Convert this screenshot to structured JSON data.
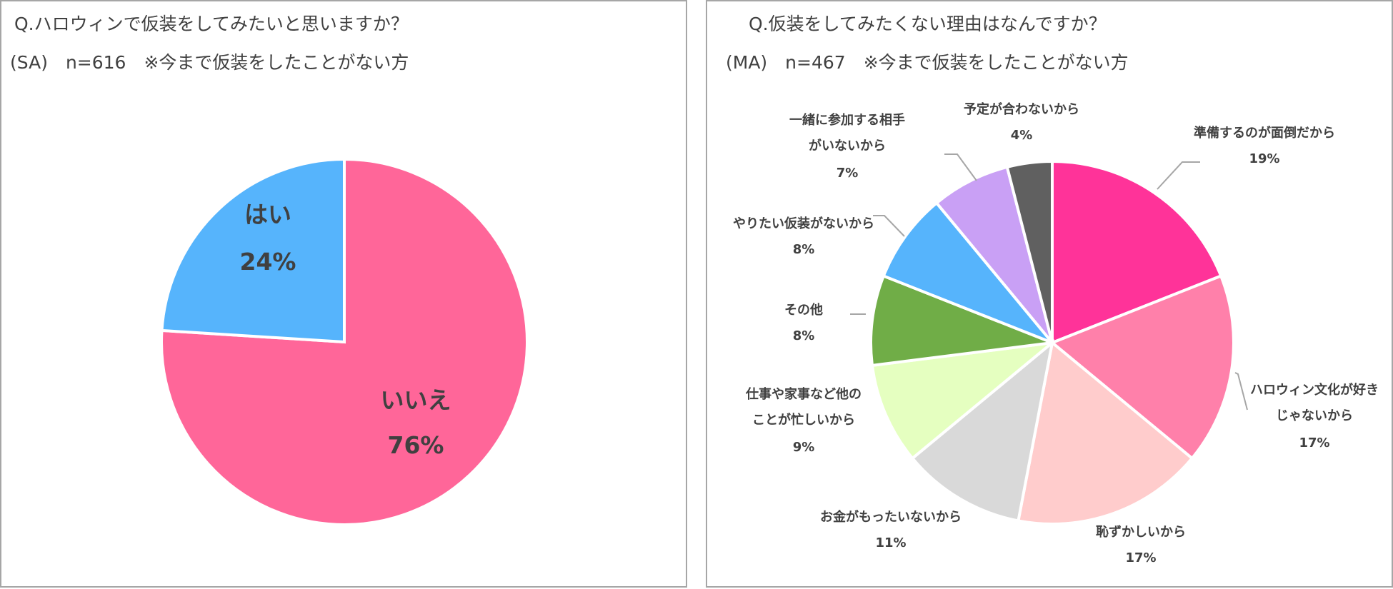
{
  "left_panel": {
    "title": "Q.ハロウィンで仮装をしてみたいと思いますか？",
    "subtitle": "(SA)　n=616　※今まで仮装をしたことがない方"
  },
  "right_panel": {
    "title": "Q.仮装をしてみたくない理由はなんですか？",
    "subtitle": "(MA)　n=467　※今まで仮装をしたことがない方"
  },
  "chart_data": [
    {
      "type": "pie",
      "title": "Q.ハロウィンで仮装をしてみたいと思いますか？",
      "slices": [
        {
          "label": "いいえ",
          "value": 76,
          "value_label": "76%",
          "color": "#ff6699"
        },
        {
          "label": "はい",
          "value": 24,
          "value_label": "24%",
          "color": "#56b4fc"
        }
      ]
    },
    {
      "type": "pie",
      "title": "Q.仮装をしてみたくない理由はなんですか？",
      "slices": [
        {
          "label": "準備するのが面倒だから",
          "label_lines": [
            "準備するのが面倒だから"
          ],
          "value": 19,
          "value_label": "19%",
          "color": "#ff3399"
        },
        {
          "label": "ハロウィン文化が好きじゃないから",
          "label_lines": [
            "ハロウィン文化が好き",
            "じゃないから"
          ],
          "value": 17,
          "value_label": "17%",
          "color": "#ff80aa"
        },
        {
          "label": "恥ずかしいから",
          "label_lines": [
            "恥ずかしいから"
          ],
          "value": 17,
          "value_label": "17%",
          "color": "#ffcccc"
        },
        {
          "label": "お金がもったいないから",
          "label_lines": [
            "お金がもったいないから"
          ],
          "value": 11,
          "value_label": "11%",
          "color": "#d9d9d9"
        },
        {
          "label": "仕事や家事など他のことが忙しいから",
          "label_lines": [
            "仕事や家事など他の",
            "ことが忙しいから"
          ],
          "value": 9,
          "value_label": "9%",
          "color": "#e5ffc0"
        },
        {
          "label": "その他",
          "label_lines": [
            "その他"
          ],
          "value": 8,
          "value_label": "8%",
          "color": "#70ad47"
        },
        {
          "label": "やりたい仮装がないから",
          "label_lines": [
            "やりたい仮装がないから"
          ],
          "value": 8,
          "value_label": "8%",
          "color": "#56b4fc"
        },
        {
          "label": "一緒に参加する相手がいないから",
          "label_lines": [
            "一緒に参加する相手",
            "がいないから"
          ],
          "value": 7,
          "value_label": "7%",
          "color": "#c9a0f5"
        },
        {
          "label": "予定が合わないから",
          "label_lines": [
            "予定が合わないから"
          ],
          "value": 4,
          "value_label": "4%",
          "color": "#606060"
        }
      ]
    }
  ]
}
